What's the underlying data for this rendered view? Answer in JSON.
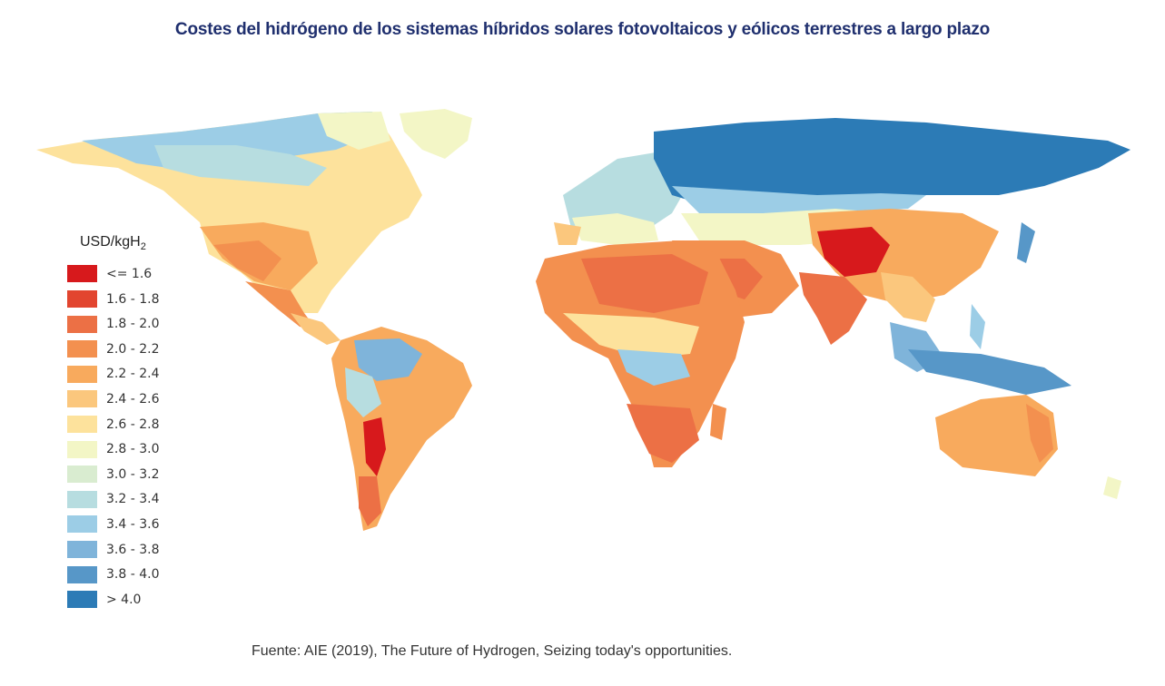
{
  "title": "Costes del hidrógeno de los sistemas híbridos solares fotovoltaicos y eólicos terrestres a largo plazo",
  "legend": {
    "title_main": "USD/kgH",
    "title_sub": "2",
    "items": [
      {
        "label": "<= 1.6",
        "color": "#d7191c"
      },
      {
        "label": "1.6 - 1.8",
        "color": "#e2452f"
      },
      {
        "label": "1.8 - 2.0",
        "color": "#ec7045"
      },
      {
        "label": "2.0 - 2.2",
        "color": "#f3904f"
      },
      {
        "label": "2.2 - 2.4",
        "color": "#f8aa5d"
      },
      {
        "label": "2.4 - 2.6",
        "color": "#fbc77d"
      },
      {
        "label": "2.6 - 2.8",
        "color": "#fde29c"
      },
      {
        "label": "2.8 - 3.0",
        "color": "#f3f6c6"
      },
      {
        "label": "3.0 - 3.2",
        "color": "#d9ecd0"
      },
      {
        "label": "3.2 - 3.4",
        "color": "#b7dde0"
      },
      {
        "label": "3.4 - 3.6",
        "color": "#9ccde6"
      },
      {
        "label": "3.6 - 3.8",
        "color": "#7fb4da"
      },
      {
        "label": "3.8 - 4.0",
        "color": "#5797c8"
      },
      {
        "label": "> 4.0",
        "color": "#2c7bb6"
      }
    ]
  },
  "source": "Fuente: AIE (2019), The Future of Hydrogen, Seizing today's opportunities."
}
